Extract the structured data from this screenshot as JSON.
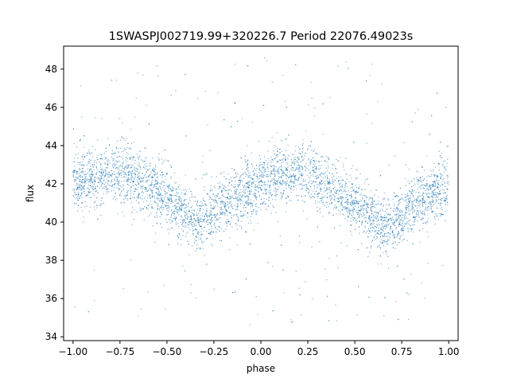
{
  "chart_data": {
    "type": "scatter",
    "title": "1SWASPJ002719.99+320226.7 Period 22076.49023s",
    "xlabel": "phase",
    "ylabel": "flux",
    "xlim": [
      -1.05,
      1.05
    ],
    "ylim": [
      33.8,
      49.2
    ],
    "xticks": [
      -1.0,
      -0.75,
      -0.5,
      -0.25,
      0.0,
      0.25,
      0.5,
      0.75,
      1.0
    ],
    "xtick_labels": [
      "−1.00",
      "−0.75",
      "−0.50",
      "−0.25",
      "0.00",
      "0.25",
      "0.50",
      "0.75",
      "1.00"
    ],
    "yticks": [
      34,
      36,
      38,
      40,
      42,
      44,
      46,
      48
    ],
    "ytick_labels": [
      "34",
      "36",
      "38",
      "40",
      "42",
      "44",
      "46",
      "48"
    ],
    "grid": false,
    "marker_color": "#1f77b4",
    "series": [
      {
        "description_points": "phase-folded light curve; dense band of points, mean flux vs phase",
        "x": [
          -1.0,
          -0.9,
          -0.8,
          -0.75,
          -0.7,
          -0.6,
          -0.5,
          -0.4,
          -0.35,
          -0.3,
          -0.25,
          -0.2,
          -0.1,
          0.0,
          0.1,
          0.2,
          0.25,
          0.3,
          0.4,
          0.5,
          0.6,
          0.65,
          0.7,
          0.75,
          0.8,
          0.9,
          1.0
        ],
        "values": [
          42.0,
          42.3,
          42.6,
          42.6,
          42.4,
          41.9,
          41.2,
          40.4,
          39.9,
          40.0,
          40.5,
          40.9,
          41.5,
          42.0,
          42.4,
          42.6,
          42.5,
          42.3,
          41.6,
          40.9,
          40.1,
          39.7,
          39.9,
          40.3,
          40.8,
          41.4,
          41.9
        ]
      }
    ]
  }
}
